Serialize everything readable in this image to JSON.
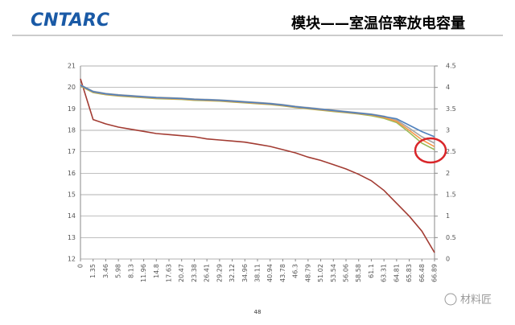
{
  "header": {
    "logo": "CNTARC",
    "title": "模块——室温倍率放电容量"
  },
  "chart_data": {
    "type": "line",
    "categories": [
      "0",
      "1.35",
      "3.46",
      "5.98",
      "8.13",
      "11.96",
      "14.8",
      "17.63",
      "20.47",
      "23.38",
      "26.41",
      "29.29",
      "32.12",
      "34.96",
      "38.11",
      "40.94",
      "43.78",
      "46.3",
      "48.79",
      "51.02",
      "53.54",
      "56.06",
      "58.58",
      "61.1",
      "63.31",
      "64.81",
      "65.83",
      "66.48",
      "66.89"
    ],
    "series": [
      {
        "color": "#a23b32",
        "values": [
          20.4,
          18.5,
          18.3,
          18.15,
          18.05,
          17.95,
          17.85,
          17.8,
          17.75,
          17.7,
          17.6,
          17.55,
          17.5,
          17.45,
          17.35,
          17.25,
          17.1,
          16.95,
          16.75,
          16.6,
          16.4,
          16.2,
          15.95,
          15.65,
          15.2,
          14.6,
          14.0,
          13.3,
          12.3
        ]
      },
      {
        "color": "#a5a5a5",
        "axis": "y2",
        "values": [
          4.06,
          3.91,
          3.86,
          3.83,
          3.81,
          3.79,
          3.77,
          3.76,
          3.75,
          3.73,
          3.72,
          3.71,
          3.69,
          3.67,
          3.65,
          3.63,
          3.6,
          3.56,
          3.53,
          3.5,
          3.47,
          3.44,
          3.41,
          3.38,
          3.33,
          3.24,
          3.05,
          2.85,
          2.7
        ]
      },
      {
        "color": "#9bbb59",
        "axis": "y2",
        "values": [
          4.03,
          3.88,
          3.83,
          3.8,
          3.78,
          3.76,
          3.74,
          3.73,
          3.72,
          3.7,
          3.69,
          3.68,
          3.66,
          3.64,
          3.62,
          3.6,
          3.57,
          3.53,
          3.5,
          3.47,
          3.44,
          3.41,
          3.38,
          3.34,
          3.28,
          3.18,
          2.95,
          2.7,
          2.55
        ]
      },
      {
        "color": "#f79646",
        "axis": "y2",
        "values": [
          4.04,
          3.89,
          3.84,
          3.81,
          3.79,
          3.77,
          3.75,
          3.74,
          3.73,
          3.71,
          3.7,
          3.69,
          3.67,
          3.65,
          3.63,
          3.61,
          3.58,
          3.54,
          3.51,
          3.48,
          3.45,
          3.42,
          3.39,
          3.36,
          3.3,
          3.21,
          3.0,
          2.78,
          2.62
        ]
      },
      {
        "color": "#4f81bd",
        "axis": "y2",
        "values": [
          4.05,
          3.9,
          3.85,
          3.82,
          3.8,
          3.78,
          3.76,
          3.75,
          3.74,
          3.72,
          3.71,
          3.7,
          3.68,
          3.66,
          3.64,
          3.62,
          3.59,
          3.55,
          3.52,
          3.49,
          3.46,
          3.43,
          3.4,
          3.37,
          3.32,
          3.27,
          3.12,
          2.97,
          2.85
        ]
      }
    ],
    "ylim": [
      12,
      21
    ],
    "yticks": [
      12,
      13,
      14,
      15,
      16,
      17,
      18,
      19,
      20,
      21
    ],
    "y2lim": [
      0,
      4.5
    ],
    "y2ticks": [
      0,
      0.5,
      1,
      1.5,
      2,
      2.5,
      3,
      3.5,
      4,
      4.5
    ],
    "grid": true
  },
  "footer": {
    "page_number": "48",
    "watermark": "材料匠"
  }
}
